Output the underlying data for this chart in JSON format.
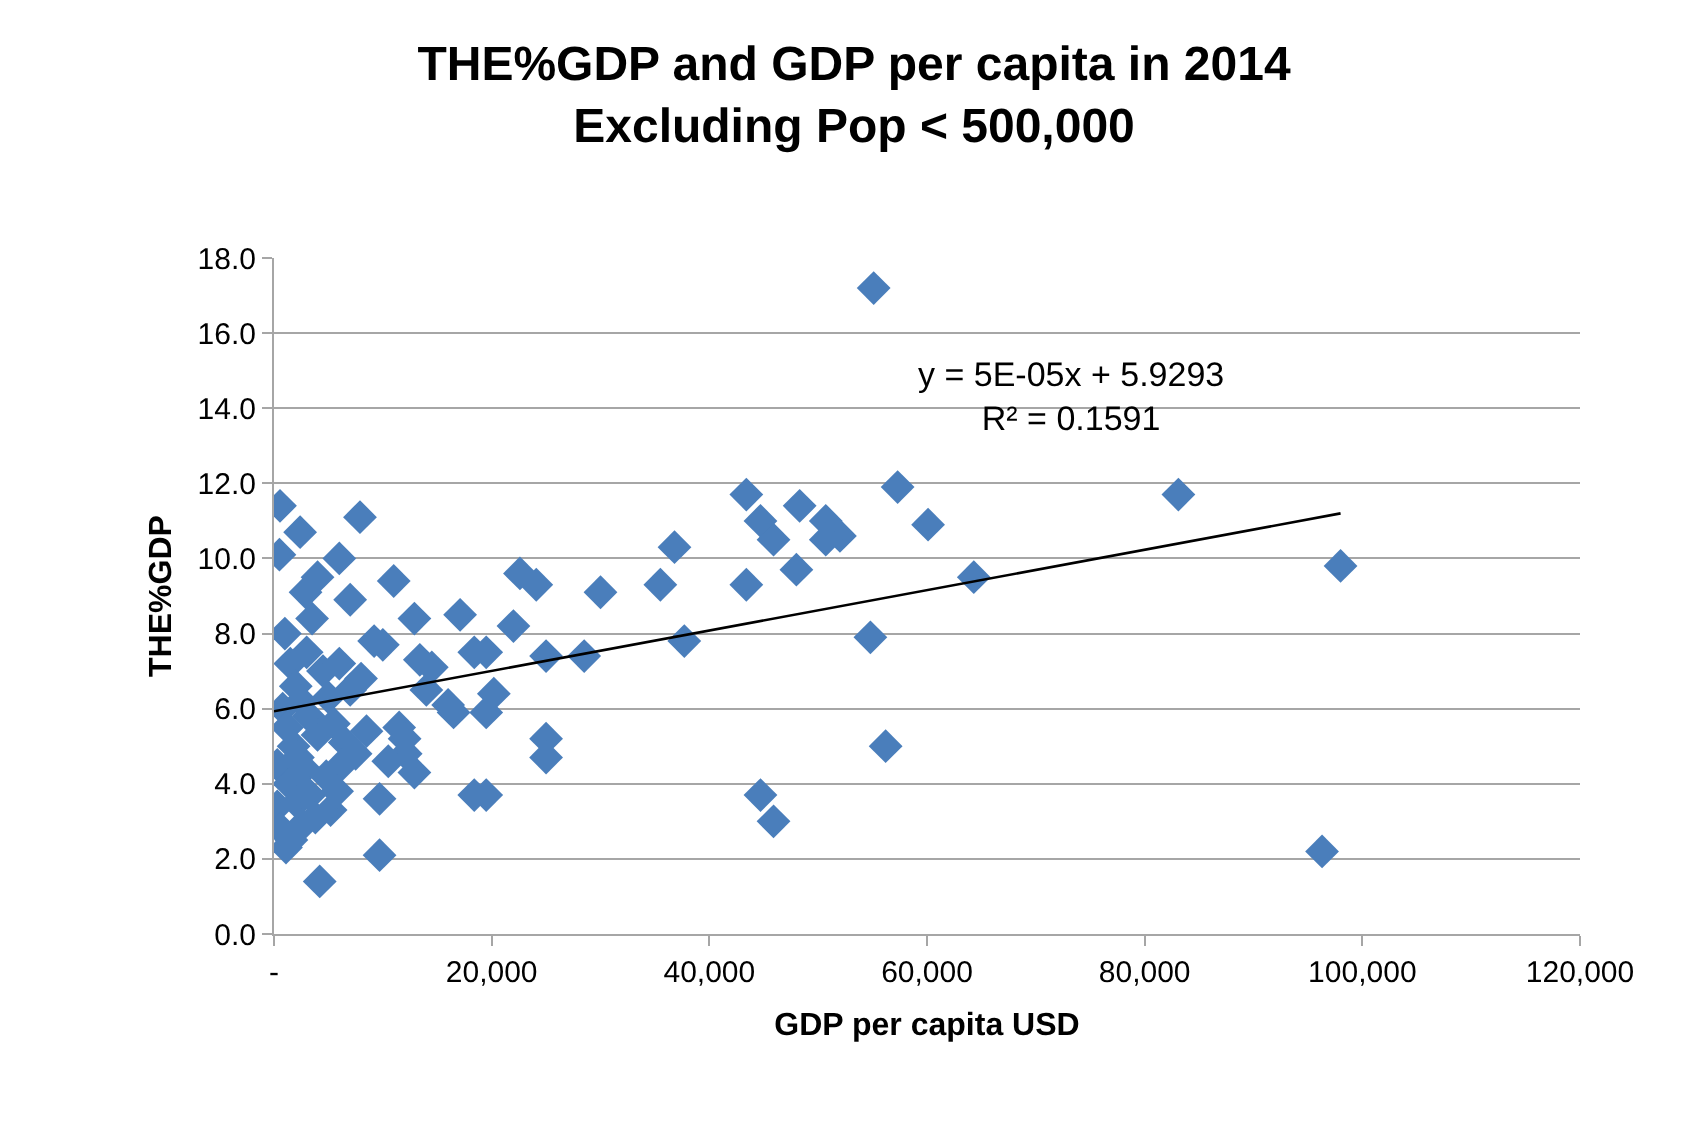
{
  "chart_data": {
    "type": "scatter",
    "title": "THE%GDP and GDP per capita in 2014\nExcluding Pop < 500,000",
    "xlabel": "GDP per capita USD",
    "ylabel": "THE%GDP",
    "annotations": [
      "y = 5E-05x + 5.9293\nR² = 0.1591"
    ],
    "series": [
      {
        "color": "#4a7ebb",
        "marker": "diamond",
        "x": [
          55100,
          83100,
          57300,
          60100,
          64300,
          54800,
          56200,
          98000,
          96300,
          43400,
          44700,
          45900,
          48300,
          50700,
          52000,
          50700,
          48000,
          43400,
          36800,
          35500,
          30000,
          22600,
          24100,
          22000,
          37700,
          25000,
          28500,
          19500,
          20200,
          19500,
          25000,
          25000,
          19500,
          44700,
          45900,
          550,
          2400,
          7900,
          6000,
          11000,
          2900,
          12900,
          17100,
          18400,
          13400,
          9200,
          16500,
          12100,
          12900,
          18400,
          9700,
          9700,
          4200,
          1100,
          7000,
          10000,
          14000,
          16000,
          8000,
          11500,
          4000,
          500,
          1000,
          1500,
          2000,
          3000,
          3500,
          4500,
          5000,
          6000,
          7000,
          800,
          1200,
          1800,
          2500,
          3200,
          4000,
          5500,
          6500,
          7500,
          300,
          1400,
          2200,
          2800,
          4800,
          6200,
          300,
          2100,
          3300,
          5200,
          600,
          1600,
          2600,
          3800,
          5800,
          8500,
          10500,
          12000,
          14500
        ],
        "values": [
          17.2,
          11.7,
          11.9,
          10.9,
          9.5,
          7.9,
          5.0,
          9.8,
          2.2,
          11.7,
          11.0,
          10.5,
          11.4,
          11.0,
          10.6,
          10.5,
          9.7,
          9.3,
          10.3,
          9.3,
          9.1,
          9.6,
          9.3,
          8.2,
          7.8,
          7.4,
          7.4,
          7.5,
          6.4,
          5.9,
          5.2,
          4.7,
          3.7,
          3.7,
          3.0,
          11.4,
          10.7,
          11.1,
          10.0,
          9.4,
          9.1,
          8.4,
          8.5,
          7.5,
          7.3,
          7.8,
          5.9,
          4.8,
          4.3,
          3.7,
          3.6,
          2.1,
          1.4,
          2.3,
          8.9,
          7.7,
          6.5,
          6.1,
          6.8,
          5.5,
          9.5,
          10.1,
          8.0,
          7.2,
          6.6,
          7.5,
          8.4,
          7.0,
          6.3,
          7.2,
          6.5,
          6.0,
          5.5,
          5.0,
          6.2,
          5.8,
          5.3,
          5.6,
          5.1,
          4.8,
          4.5,
          4.0,
          4.7,
          4.4,
          4.2,
          4.5,
          3.4,
          3.5,
          3.7,
          3.3,
          2.8,
          2.5,
          2.9,
          3.1,
          3.8,
          5.4,
          4.6,
          5.2,
          7.1
        ]
      },
      {
        "type": "line",
        "color": "#000000",
        "x": [
          0,
          98000
        ],
        "values": [
          5.93,
          11.2
        ]
      }
    ],
    "xlim": [
      0,
      120000
    ],
    "xticks": [
      {
        "value": 0,
        "label": "-"
      },
      {
        "value": 20000,
        "label": "20,000"
      },
      {
        "value": 40000,
        "label": "40,000"
      },
      {
        "value": 60000,
        "label": "60,000"
      },
      {
        "value": 80000,
        "label": "80,000"
      },
      {
        "value": 100000,
        "label": "100,000"
      },
      {
        "value": 120000,
        "label": "120,000"
      }
    ],
    "ylim": [
      0,
      18
    ],
    "yticks": [
      {
        "value": 0,
        "label": "0.0"
      },
      {
        "value": 2,
        "label": "2.0"
      },
      {
        "value": 4,
        "label": "4.0"
      },
      {
        "value": 6,
        "label": "6.0"
      },
      {
        "value": 8,
        "label": "8.0"
      },
      {
        "value": 10,
        "label": "10.0"
      },
      {
        "value": 12,
        "label": "12.0"
      },
      {
        "value": 14,
        "label": "14.0"
      },
      {
        "value": 16,
        "label": "16.0"
      },
      {
        "value": 18,
        "label": "18.0"
      }
    ],
    "grid": "y"
  }
}
